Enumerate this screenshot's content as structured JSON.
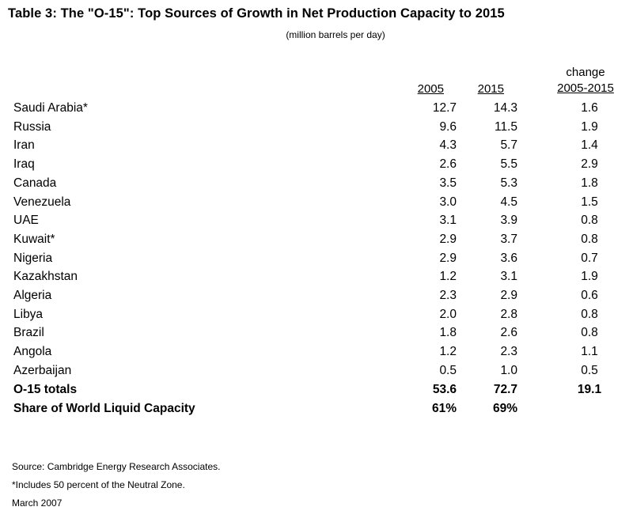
{
  "title": "Table 3: The \"O-15\": Top Sources of Growth in Net Production Capacity to 2015",
  "subtitle": "(million barrels per day)",
  "headers": {
    "change_line1": "change",
    "change_line2": "2005-2015",
    "y2005": "2005",
    "y2015": "2015"
  },
  "rows": [
    {
      "name": "Saudi Arabia*",
      "y2005": "12.7",
      "y2015": "14.3",
      "change": "1.6"
    },
    {
      "name": "Russia",
      "y2005": "9.6",
      "y2015": "11.5",
      "change": "1.9"
    },
    {
      "name": "Iran",
      "y2005": "4.3",
      "y2015": "5.7",
      "change": "1.4"
    },
    {
      "name": "Iraq",
      "y2005": "2.6",
      "y2015": "5.5",
      "change": "2.9"
    },
    {
      "name": "Canada",
      "y2005": "3.5",
      "y2015": "5.3",
      "change": "1.8"
    },
    {
      "name": "Venezuela",
      "y2005": "3.0",
      "y2015": "4.5",
      "change": "1.5"
    },
    {
      "name": "UAE",
      "y2005": "3.1",
      "y2015": "3.9",
      "change": "0.8"
    },
    {
      "name": "Kuwait*",
      "y2005": "2.9",
      "y2015": "3.7",
      "change": "0.8"
    },
    {
      "name": "Nigeria",
      "y2005": "2.9",
      "y2015": "3.6",
      "change": "0.7"
    },
    {
      "name": "Kazakhstan",
      "y2005": "1.2",
      "y2015": "3.1",
      "change": "1.9"
    },
    {
      "name": "Algeria",
      "y2005": "2.3",
      "y2015": "2.9",
      "change": "0.6"
    },
    {
      "name": "Libya",
      "y2005": "2.0",
      "y2015": "2.8",
      "change": "0.8"
    },
    {
      "name": "Brazil",
      "y2005": "1.8",
      "y2015": "2.6",
      "change": "0.8"
    },
    {
      "name": "Angola",
      "y2005": "1.2",
      "y2015": "2.3",
      "change": "1.1"
    },
    {
      "name": "Azerbaijan",
      "y2005": "0.5",
      "y2015": "1.0",
      "change": "0.5"
    }
  ],
  "totals": {
    "name": "O-15 totals",
    "y2005": "53.6",
    "y2015": "72.7",
    "change": "19.1"
  },
  "share": {
    "name": "Share of World Liquid Capacity",
    "y2005": "61%",
    "y2015": "69%"
  },
  "footer": {
    "source": "Source: Cambridge Energy Research Associates.",
    "note": "*Includes 50 percent of the Neutral Zone.",
    "date": "March 2007"
  }
}
